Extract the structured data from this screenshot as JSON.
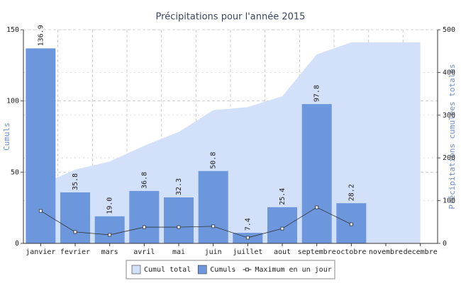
{
  "chart_data": {
    "type": "bar",
    "title": "Précipitations pour l'année 2015",
    "ylabel": "Cumuls",
    "y2label": "Précipitations cumulées totales",
    "categories": [
      "janvier",
      "fevrier",
      "mars",
      "avril",
      "mai",
      "juin",
      "juillet",
      "aout",
      "septembre",
      "octobre",
      "novembre",
      "decembre"
    ],
    "series": [
      {
        "name": "Cumul total",
        "type": "area",
        "axis": "y2",
        "color": "#d3e0f9",
        "values": [
          136.9,
          172.7,
          191.7,
          228.5,
          260.8,
          311.6,
          319.0,
          344.4,
          442.2,
          470.4,
          470.4,
          470.4
        ]
      },
      {
        "name": "Cumuls",
        "type": "bar",
        "color": "#6d97dd",
        "values": [
          136.9,
          35.8,
          19.0,
          36.8,
          32.3,
          50.8,
          7.4,
          25.4,
          97.8,
          28.2,
          null,
          null
        ],
        "value_labels": [
          "136.9",
          "35.8",
          "19.0",
          "36.8",
          "32.3",
          "50.8",
          "7.4",
          "25.4",
          "97.8",
          "28.2",
          null,
          null
        ]
      },
      {
        "name": "Maximum en un jour",
        "type": "line",
        "color": "#333333",
        "values": [
          22.8,
          8,
          6,
          11.4,
          11.4,
          12,
          4,
          10.4,
          25.3,
          13.4,
          null,
          null
        ]
      }
    ],
    "ylim": [
      0,
      150
    ],
    "yticks": [
      0,
      50,
      100,
      150
    ],
    "y2lim": [
      0,
      500
    ],
    "y2ticks": [
      0,
      100,
      200,
      300,
      400,
      500
    ],
    "grid": true,
    "legend": "bottom"
  }
}
